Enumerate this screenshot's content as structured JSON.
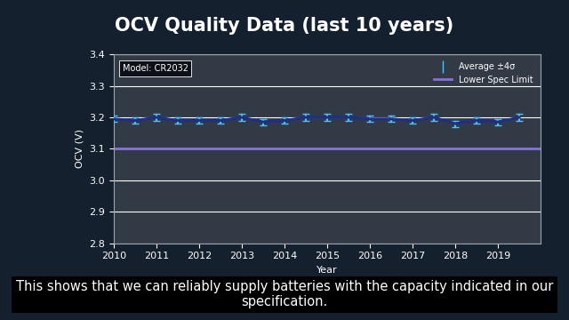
{
  "chart_data": {
    "type": "line",
    "title": "OCV Quality Data (last 10 years)",
    "x_label": "Year",
    "y_label": "OCV (V)",
    "annotations": [
      "Model: CR2032"
    ],
    "caption": "This shows that we can reliably supply batteries with the capacity indicated in our specification.",
    "xlim": [
      2010,
      2020
    ],
    "xticks": [
      2010,
      2011,
      2012,
      2013,
      2014,
      2015,
      2016,
      2017,
      2018,
      2019
    ],
    "ylim": [
      2.8,
      3.4
    ],
    "yticks": [
      2.8,
      2.9,
      3.0,
      3.1,
      3.2,
      3.3,
      3.4
    ],
    "grid": true,
    "legend": "upper right",
    "series": [
      {
        "name": "Average ±4σ",
        "color": "#1c2f8c",
        "line_style": "solid",
        "x": [
          2010,
          2010.5,
          2011,
          2011.5,
          2012,
          2012.5,
          2013,
          2013.5,
          2014,
          2014.5,
          2015,
          2015.5,
          2016,
          2016.5,
          2017,
          2017.5,
          2018,
          2018.5,
          2019,
          2019.5
        ],
        "values": [
          3.195,
          3.19,
          3.2,
          3.19,
          3.19,
          3.19,
          3.2,
          3.185,
          3.19,
          3.2,
          3.2,
          3.2,
          3.195,
          3.195,
          3.19,
          3.2,
          3.18,
          3.19,
          3.185,
          3.2
        ],
        "errors": [
          0.01,
          0.01,
          0.01,
          0.01,
          0.01,
          0.01,
          0.01,
          0.01,
          0.01,
          0.01,
          0.01,
          0.01,
          0.01,
          0.01,
          0.01,
          0.01,
          0.01,
          0.01,
          0.01,
          0.01
        ]
      },
      {
        "name": "Lower Spec Limit",
        "color": "#8a6fe0",
        "line_style": "solid",
        "x": [
          2010,
          2020
        ],
        "values": [
          3.1,
          3.1
        ]
      }
    ]
  }
}
